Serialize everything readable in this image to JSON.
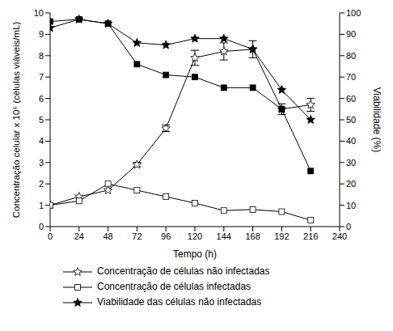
{
  "chart_data": {
    "type": "line",
    "x_label": "Tempo (h)",
    "y_label": "Concentração celular x 10⁶ (células viáveis/mL)",
    "y2_label": "Viabilidade (%)",
    "x": [
      0,
      24,
      48,
      72,
      96,
      120,
      144,
      168,
      192,
      216
    ],
    "xlim": [
      0,
      240
    ],
    "xticks": [
      0,
      24,
      48,
      72,
      96,
      120,
      144,
      168,
      192,
      216,
      240
    ],
    "ylim": [
      0,
      10
    ],
    "yticks": [
      0,
      1,
      2,
      3,
      4,
      5,
      6,
      7,
      8,
      9,
      10
    ],
    "y2lim": [
      0,
      100
    ],
    "y2ticks": [
      0,
      10,
      20,
      30,
      40,
      50,
      60,
      70,
      80,
      90,
      100
    ],
    "grid": false,
    "legend": "bottom",
    "series": [
      {
        "name": "Concentração de células não infectadas",
        "color": "#000000",
        "marker": "star_open",
        "values": [
          1.0,
          1.4,
          1.7,
          2.9,
          4.6,
          7.9,
          8.2,
          8.3,
          5.5,
          5.7
        ],
        "errors": [
          0,
          0,
          0,
          0.1,
          0.15,
          0.35,
          0.4,
          0.4,
          0.25,
          0.3
        ]
      },
      {
        "name": "Concentração de células infectadas",
        "color": "#000000",
        "marker": "square_open",
        "values": [
          1.0,
          1.2,
          2.0,
          1.7,
          1.4,
          1.1,
          0.75,
          0.8,
          0.7,
          0.3
        ]
      },
      {
        "name": "Viabilidade das células não infectadas",
        "color": "#000000",
        "marker": "star",
        "axis": "y2",
        "values": [
          93,
          97,
          95,
          86,
          85,
          88,
          88,
          83,
          64,
          50
        ]
      },
      {
        "color": "#000000",
        "marker": "square",
        "axis": "y2",
        "values": [
          96,
          97,
          95,
          76,
          71,
          70,
          65,
          65,
          55,
          26
        ]
      }
    ]
  }
}
